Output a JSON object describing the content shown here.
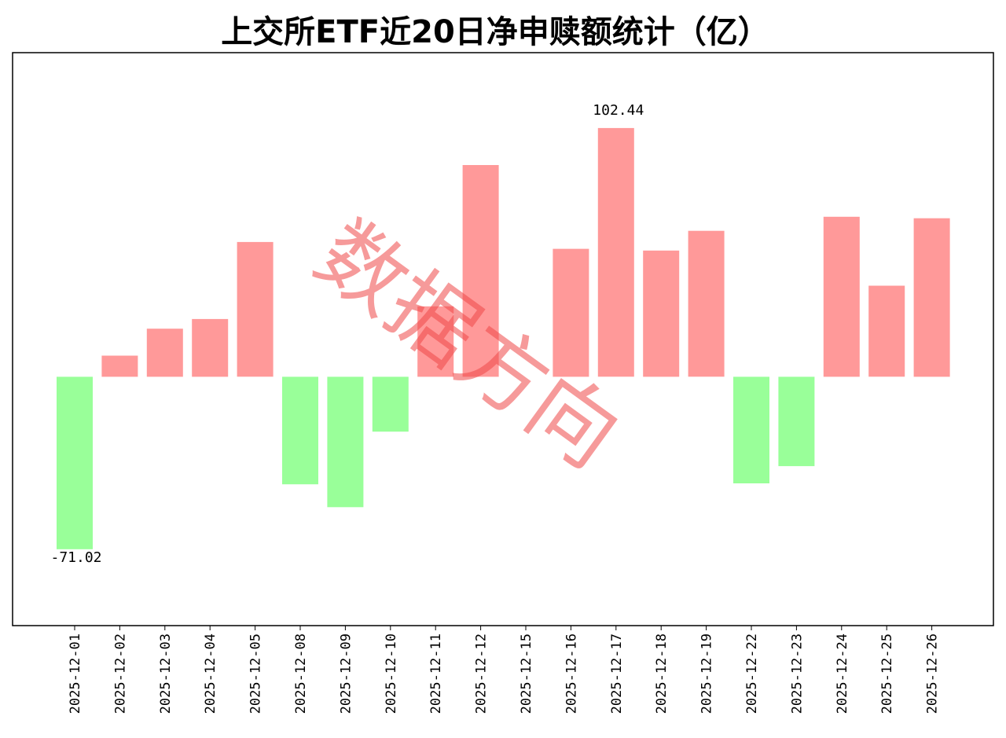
{
  "chart_data": {
    "type": "bar",
    "title": "上交所ETF近20日净申赎额统计（亿）",
    "categories": [
      "2025-12-01",
      "2025-12-02",
      "2025-12-03",
      "2025-12-04",
      "2025-12-05",
      "2025-12-08",
      "2025-12-09",
      "2025-12-10",
      "2025-12-11",
      "2025-12-12",
      "2025-12-15",
      "2025-12-16",
      "2025-12-17",
      "2025-12-18",
      "2025-12-19",
      "2025-12-22",
      "2025-12-23",
      "2025-12-24",
      "2025-12-25",
      "2025-12-26"
    ],
    "values": [
      -71.02,
      8.7,
      19.8,
      23.8,
      55.5,
      -44.3,
      -53.7,
      -22.6,
      29.0,
      87.2,
      0,
      52.7,
      102.44,
      52.0,
      60.1,
      -43.9,
      -36.8,
      65.9,
      37.5,
      65.3
    ],
    "data_labels": [
      {
        "category": "2025-12-01",
        "text": "-71.02"
      },
      {
        "category": "2025-12-17",
        "text": "102.44"
      }
    ],
    "ylim": [
      -102.5,
      133.5
    ],
    "xlabel": "",
    "ylabel": "",
    "grid": false,
    "colors": {
      "positive": "#ff9999",
      "negative": "#99ff99"
    }
  },
  "watermark": {
    "text": "数据方向",
    "color": "#f04848"
  }
}
